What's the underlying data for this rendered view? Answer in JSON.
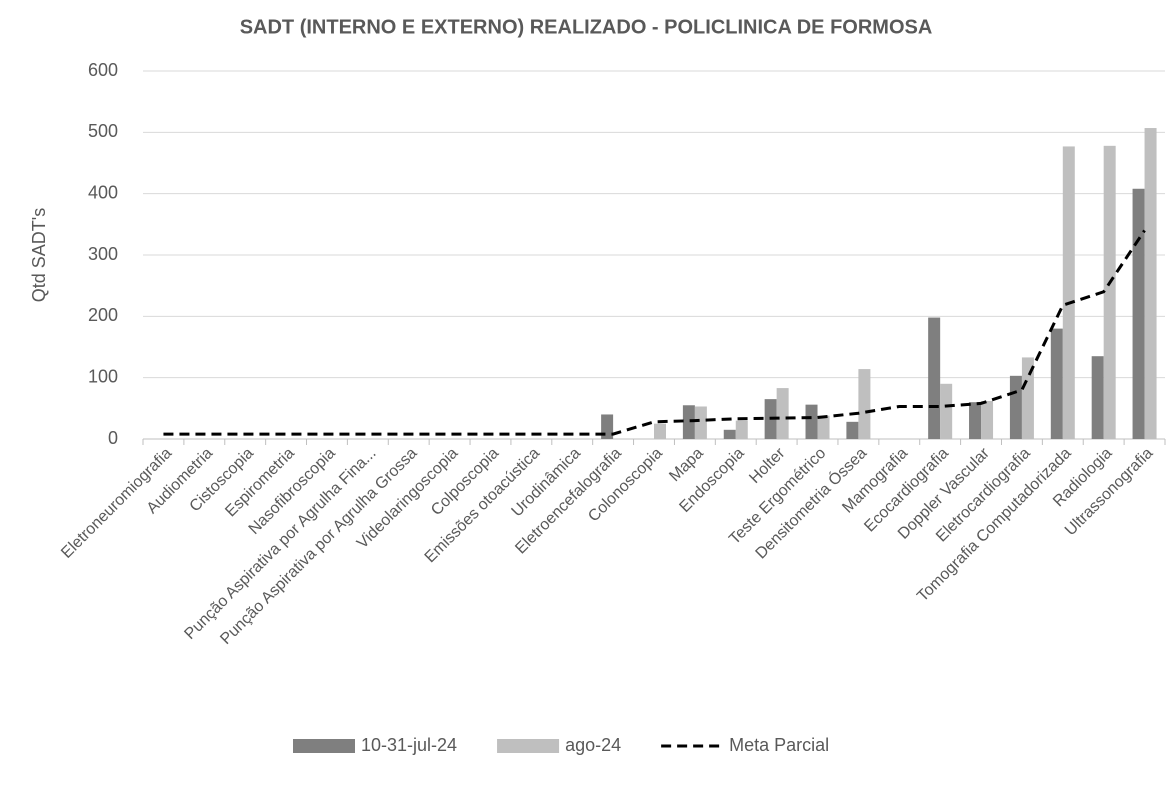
{
  "chart_data": {
    "type": "bar",
    "title": "SADT (INTERNO E EXTERNO) REALIZADO - POLICLINICA DE FORMOSA",
    "y_label": "Qtd SADT's",
    "categories": [
      "Eletroneuromiografia",
      "Audiometria",
      "Cistoscopia",
      "Espirometria",
      "Nasofibroscopia",
      "Punção Aspirativa por Agrulha Fina...",
      "Punção Aspirativa por Agrulha Grossa",
      "Videolaringoscopia",
      "Colposcopia",
      "Emissões otoacústica",
      "Urodinâmica",
      "Eletroencefalografia",
      "Colonoscopia",
      "Mapa",
      "Endoscopia",
      "Holter",
      "Teste Ergométrico",
      "Densitometria Óssea",
      "Mamografia",
      "Ecocardiografia",
      "Doppler Vascular",
      "Eletrocardiografia",
      "Tomografia Computadorizada",
      "Radiologia",
      "Ultrassonografia"
    ],
    "series": [
      {
        "name": "10-31-jul-24",
        "type": "bar",
        "color": "#7f7f7f",
        "values": [
          null,
          null,
          null,
          null,
          null,
          null,
          null,
          null,
          null,
          null,
          null,
          40,
          null,
          55,
          15,
          65,
          56,
          28,
          null,
          198,
          60,
          103,
          180,
          135,
          408
        ]
      },
      {
        "name": "ago-24",
        "type": "bar",
        "color": "#bfbfbf",
        "values": [
          null,
          null,
          null,
          null,
          null,
          null,
          null,
          null,
          null,
          null,
          null,
          null,
          25,
          53,
          30,
          83,
          38,
          114,
          null,
          90,
          62,
          133,
          477,
          478,
          507
        ]
      },
      {
        "name": "Meta Parcial",
        "type": "line",
        "color": "#000000",
        "dashed": true,
        "values": [
          8,
          8,
          8,
          8,
          8,
          8,
          8,
          8,
          8,
          8,
          8,
          8,
          28,
          30,
          33,
          34,
          35,
          42,
          53,
          53,
          58,
          80,
          218,
          240,
          340
        ]
      }
    ],
    "ylim": [
      0,
      600
    ],
    "yticks": [
      0,
      100,
      200,
      300,
      400,
      500,
      600
    ],
    "grid": true,
    "legend": "bottom"
  }
}
